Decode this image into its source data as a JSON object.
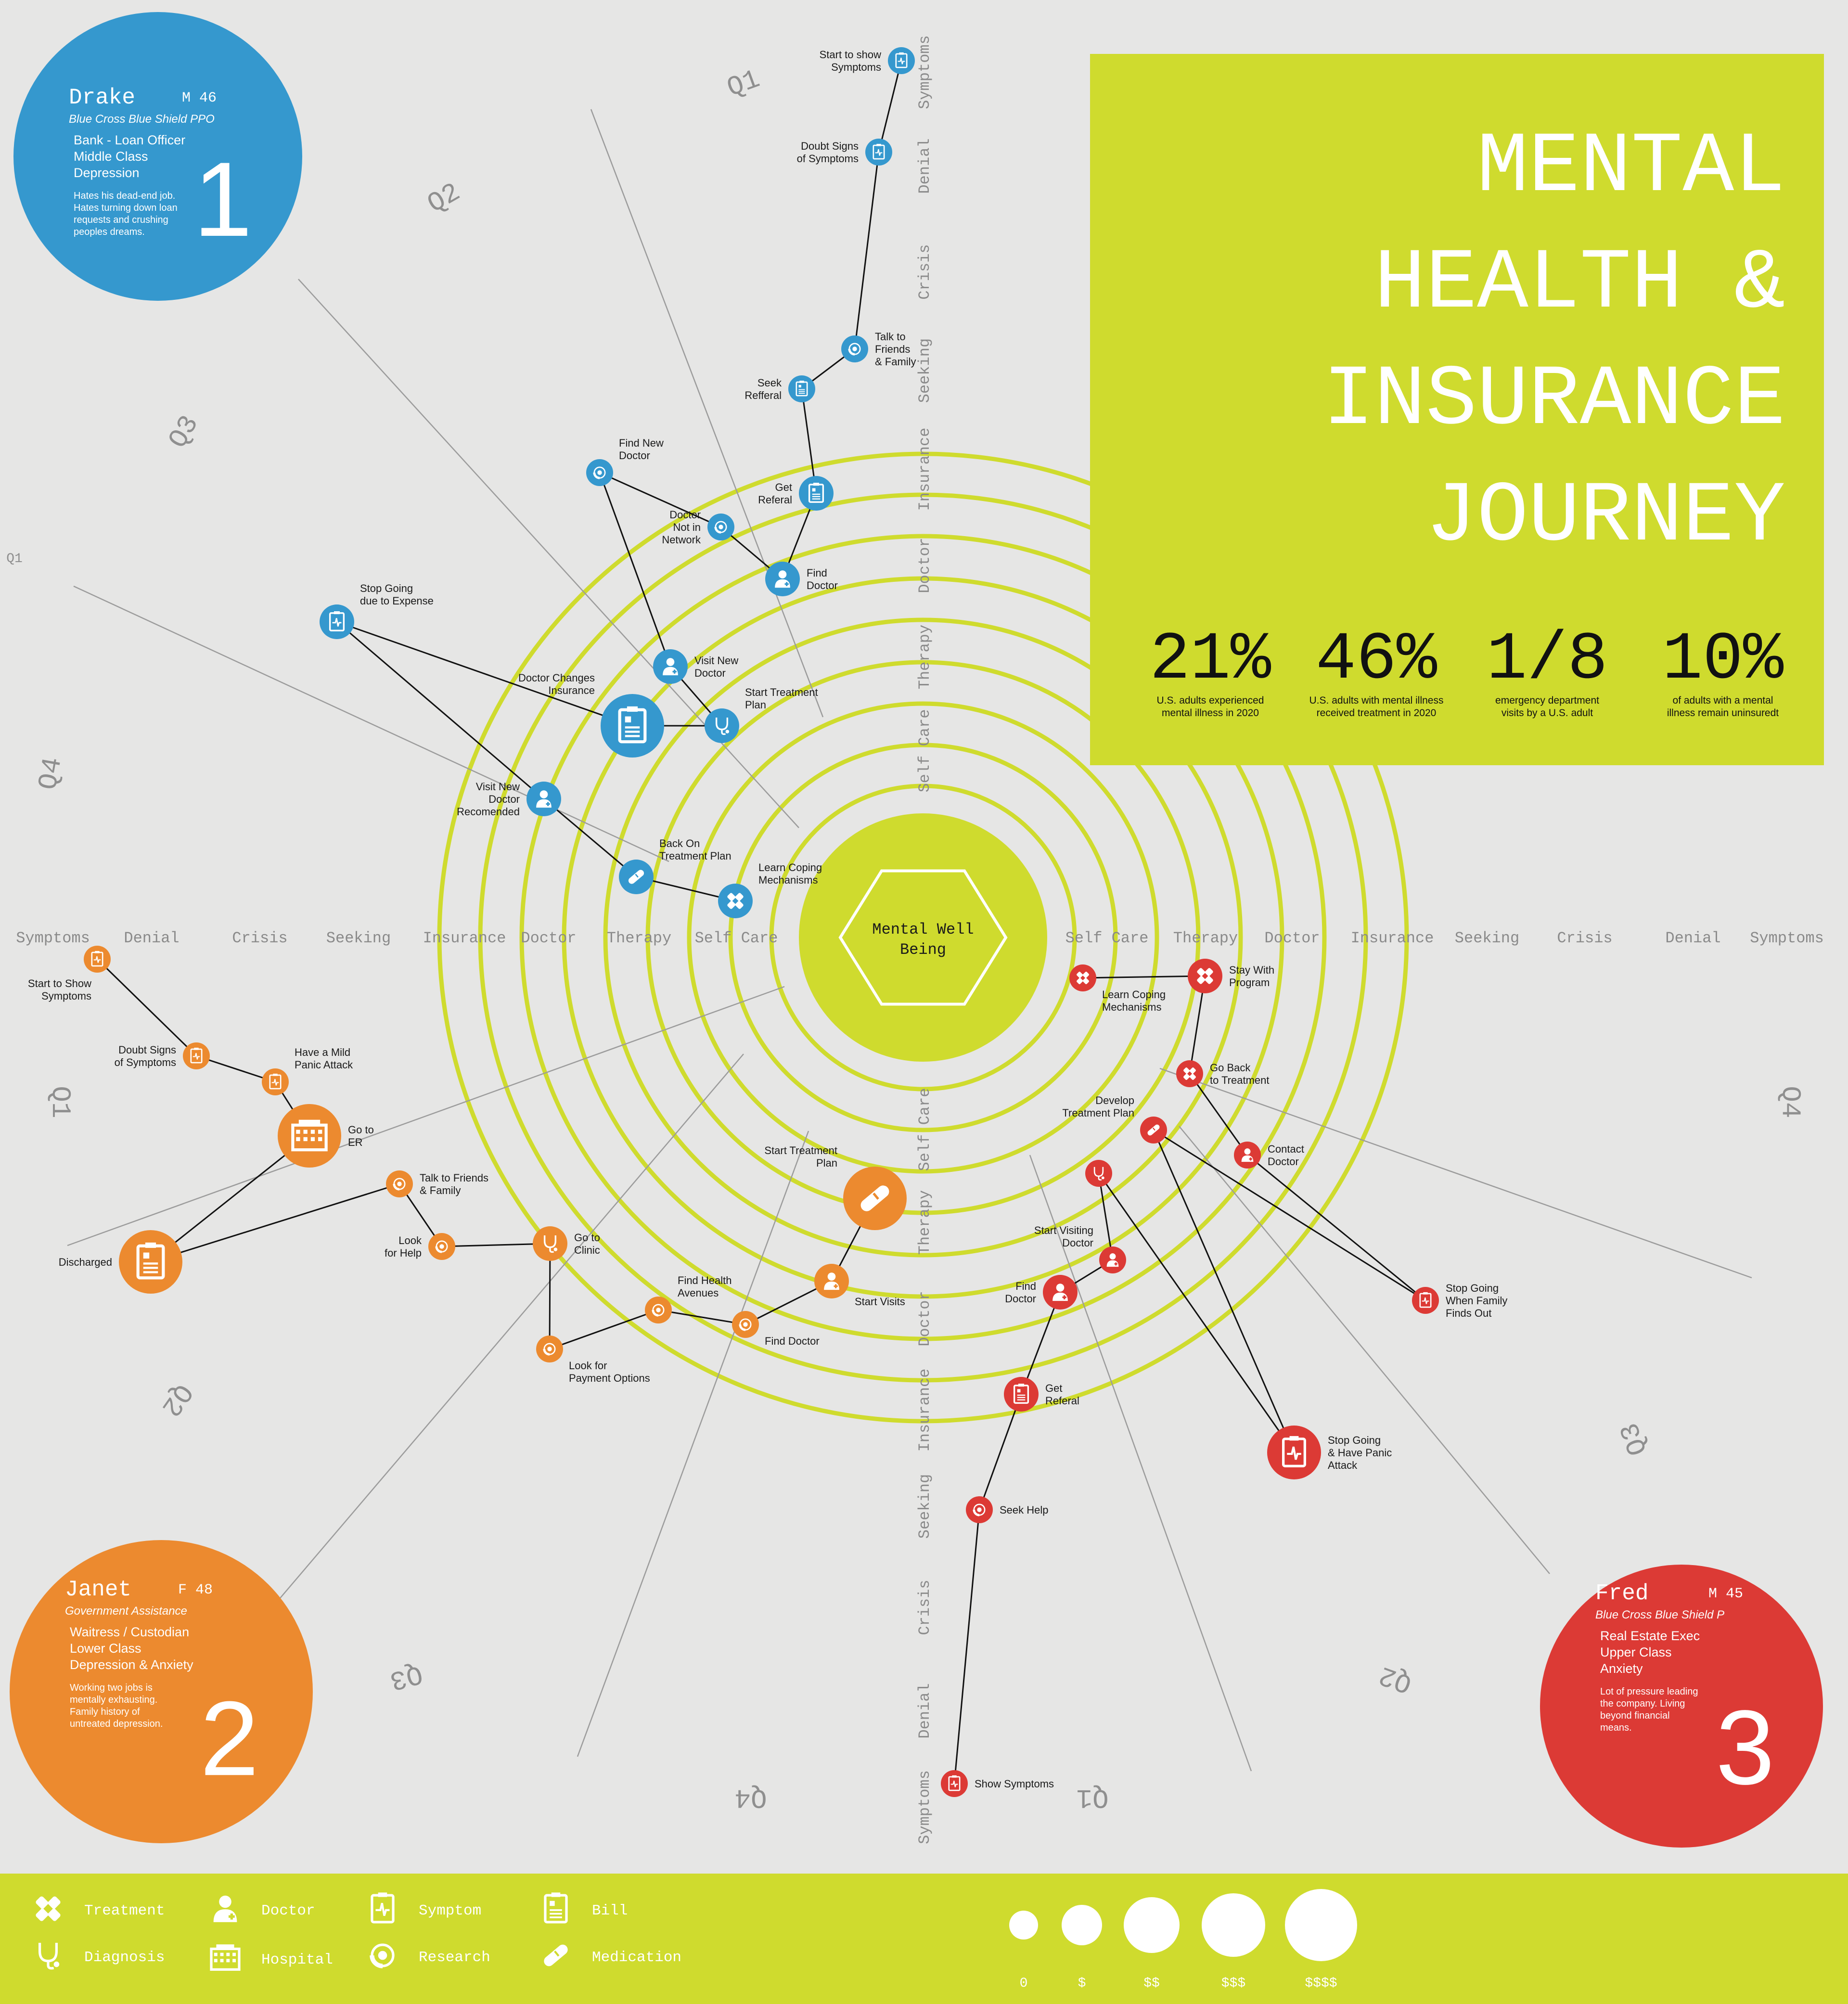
{
  "title": {
    "lines": [
      "MENTAL",
      "HEALTH &",
      "INSURANCE",
      "JOURNEY"
    ],
    "stats": [
      {
        "value": "21%",
        "caption": [
          "U.S. adults experienced",
          "mental illness in 2020"
        ]
      },
      {
        "value": "46%",
        "caption": [
          "U.S. adults with mental illness",
          "received treatment in 2020"
        ]
      },
      {
        "value": "1/8",
        "caption": [
          "emergency department",
          "visits by a U.S. adult"
        ]
      },
      {
        "value": "10%",
        "caption": [
          "of adults with a mental",
          "illness remain uninsuredt"
        ]
      }
    ]
  },
  "center": {
    "label": [
      "Mental Well",
      "Being"
    ]
  },
  "stages": [
    "Self Care",
    "Therapy",
    "Doctor",
    "Insurance",
    "Seeking",
    "Crisis",
    "Denial",
    "Symptoms"
  ],
  "quadrant_labels": [
    "Q1",
    "Q2",
    "Q3",
    "Q4",
    "Q1",
    "Q1",
    "Q2",
    "Q3",
    "Q4",
    "Q4",
    "Q1",
    "Q2",
    "Q3",
    "Q4"
  ],
  "colors": {
    "background": "#e6e6e5",
    "accent": "#cfdb2e",
    "ring": "#cfdb2e",
    "drake": "#3598ce",
    "janet": "#ec8a2f",
    "fred": "#dc3a35",
    "white": "#ffffff",
    "ink": "#1a1a1a",
    "grey_text": "#8a8a8a"
  },
  "personas": [
    {
      "name": "Drake",
      "meta": "M 46",
      "insurance": "Blue Cross Blue Shield PPO",
      "details": [
        "Bank - Loan Officer",
        "Middle Class",
        "Depression"
      ],
      "bio": [
        "Hates his dead-end job.",
        "Hates turning down loan",
        "requests and crushing",
        "peoples dreams."
      ],
      "number": "1",
      "color": "#3598ce"
    },
    {
      "name": "Janet",
      "meta": "F 48",
      "insurance": "Government Assistance",
      "details": [
        "Waitress / Custodian",
        "Lower Class",
        "Depression & Anxiety"
      ],
      "bio": [
        "Working two jobs is",
        "mentally exhausting.",
        "Family history of",
        "untreated depression."
      ],
      "number": "2",
      "color": "#ec8a2f"
    },
    {
      "name": "Fred",
      "meta": "M 45",
      "insurance": "Blue Cross Blue Shield P",
      "details": [
        "Real Estate Exec",
        "Upper Class",
        "Anxiety"
      ],
      "bio": [
        "Lot of pressure leading",
        "the company. Living",
        "beyond financial",
        "means."
      ],
      "number": "3",
      "color": "#dc3a35"
    }
  ],
  "journeys": {
    "drake": {
      "color": "#3598ce",
      "steps": [
        {
          "label": [
            "Start to show",
            "Symptoms"
          ],
          "icon": "symptom-icon",
          "cost": "0"
        },
        {
          "label": [
            "Doubt Signs",
            "of Symptoms"
          ],
          "icon": "symptom-icon",
          "cost": "0"
        },
        {
          "label": [
            "Talk to",
            "Friends",
            "& Family"
          ],
          "icon": "research-icon",
          "cost": "0"
        },
        {
          "label": [
            "Seek",
            "Refferal"
          ],
          "icon": "bill-icon",
          "cost": "0"
        },
        {
          "label": [
            "Get",
            "Referal"
          ],
          "icon": "bill-icon",
          "cost": "$"
        },
        {
          "label": [
            "Find",
            "Doctor"
          ],
          "icon": "doctor-icon",
          "cost": "$"
        },
        {
          "label": [
            "Doctor",
            "Not in",
            "Network"
          ],
          "icon": "research-icon",
          "cost": "0"
        },
        {
          "label": [
            "Find New",
            "Doctor"
          ],
          "icon": "research-icon",
          "cost": "0"
        },
        {
          "label": [
            "Visit New",
            "Doctor"
          ],
          "icon": "doctor-icon",
          "cost": "$"
        },
        {
          "label": [
            "Start Treatment",
            "Plan"
          ],
          "icon": "diagnosis-icon",
          "cost": "$"
        },
        {
          "label": [
            "Doctor Changes",
            "Insurance"
          ],
          "icon": "bill-icon",
          "cost": "$$$"
        },
        {
          "label": [
            "Stop Going",
            "due to Expense"
          ],
          "icon": "symptom-icon",
          "cost": "$"
        },
        {
          "label": [
            "Visit New",
            "Doctor",
            "Recomended"
          ],
          "icon": "doctor-icon",
          "cost": "$"
        },
        {
          "label": [
            "Back On",
            "Treatment Plan"
          ],
          "icon": "medication-icon",
          "cost": "$"
        },
        {
          "label": [
            "Learn Coping",
            "Mechanisms"
          ],
          "icon": "treatment-icon",
          "cost": "$"
        }
      ]
    },
    "janet": {
      "color": "#ec8a2f",
      "steps": [
        {
          "label": [
            "Start to Show",
            "Symptoms"
          ],
          "icon": "symptom-icon",
          "cost": "0"
        },
        {
          "label": [
            "Doubt Signs",
            "of Symptoms"
          ],
          "icon": "symptom-icon",
          "cost": "0"
        },
        {
          "label": [
            "Have a Mild",
            "Panic Attack"
          ],
          "icon": "symptom-icon",
          "cost": "0"
        },
        {
          "label": [
            "Go to",
            "ER"
          ],
          "icon": "hospital-icon",
          "cost": "$$$"
        },
        {
          "label": [
            "Discharged"
          ],
          "icon": "bill-icon",
          "cost": "$$$"
        },
        {
          "label": [
            "Talk to Friends",
            "& Family"
          ],
          "icon": "research-icon",
          "cost": "0"
        },
        {
          "label": [
            "Look",
            "for Help"
          ],
          "icon": "research-icon",
          "cost": "0"
        },
        {
          "label": [
            "Go to",
            "Clinic"
          ],
          "icon": "diagnosis-icon",
          "cost": "$"
        },
        {
          "label": [
            "Look for",
            "Payment Options"
          ],
          "icon": "research-icon",
          "cost": "0"
        },
        {
          "label": [
            "Find Health",
            "Avenues"
          ],
          "icon": "research-icon",
          "cost": "0"
        },
        {
          "label": [
            "Find Doctor"
          ],
          "icon": "research-icon",
          "cost": "0"
        },
        {
          "label": [
            "Start Visits"
          ],
          "icon": "doctor-icon",
          "cost": "$"
        },
        {
          "label": [
            "Start Treatment",
            "Plan"
          ],
          "icon": "medication-icon",
          "cost": "$$$"
        }
      ]
    },
    "fred": {
      "color": "#dc3a35",
      "steps": [
        {
          "label": [
            "Show Symptoms"
          ],
          "icon": "symptom-icon",
          "cost": "0"
        },
        {
          "label": [
            "Seek Help"
          ],
          "icon": "research-icon",
          "cost": "0"
        },
        {
          "label": [
            "Get",
            "Referal"
          ],
          "icon": "bill-icon",
          "cost": "$"
        },
        {
          "label": [
            "Find",
            "Doctor"
          ],
          "icon": "doctor-icon",
          "cost": "$"
        },
        {
          "label": [
            "Start Visiting",
            "Doctor"
          ],
          "icon": "doctor-icon",
          "cost": "0"
        },
        {
          "label": [],
          "icon": "diagnosis-icon",
          "cost": "0"
        },
        {
          "label": [
            "Develop",
            "Treatment Plan"
          ],
          "icon": "medication-icon",
          "cost": "0"
        },
        {
          "label": [
            "Stop Going",
            "& Have Panic",
            "Attack"
          ],
          "icon": "symptom-icon",
          "cost": "$$"
        },
        {
          "label": [
            "Stop Going",
            "When Family",
            "Finds Out"
          ],
          "icon": "symptom-icon",
          "cost": "0"
        },
        {
          "label": [
            "Contact",
            "Doctor"
          ],
          "icon": "doctor-icon",
          "cost": "0"
        },
        {
          "label": [
            "Go Back",
            "to Treatment"
          ],
          "icon": "treatment-icon",
          "cost": "0"
        },
        {
          "label": [
            "Stay With",
            "Program"
          ],
          "icon": "treatment-icon",
          "cost": "$"
        },
        {
          "label": [
            "Learn Coping",
            "Mechanisms"
          ],
          "icon": "treatment-icon",
          "cost": "0"
        }
      ]
    }
  },
  "legend": {
    "icons": [
      {
        "icon": "treatment-icon",
        "label": "Treatment"
      },
      {
        "icon": "doctor-icon",
        "label": "Doctor"
      },
      {
        "icon": "symptom-icon",
        "label": "Symptom"
      },
      {
        "icon": "bill-icon",
        "label": "Bill"
      },
      {
        "icon": "diagnosis-icon",
        "label": "Diagnosis"
      },
      {
        "icon": "hospital-icon",
        "label": "Hospital"
      },
      {
        "icon": "research-icon",
        "label": "Research"
      },
      {
        "icon": "medication-icon",
        "label": "Medication"
      }
    ],
    "costs": [
      "0",
      "$",
      "$$",
      "$$$",
      "$$$$"
    ]
  }
}
